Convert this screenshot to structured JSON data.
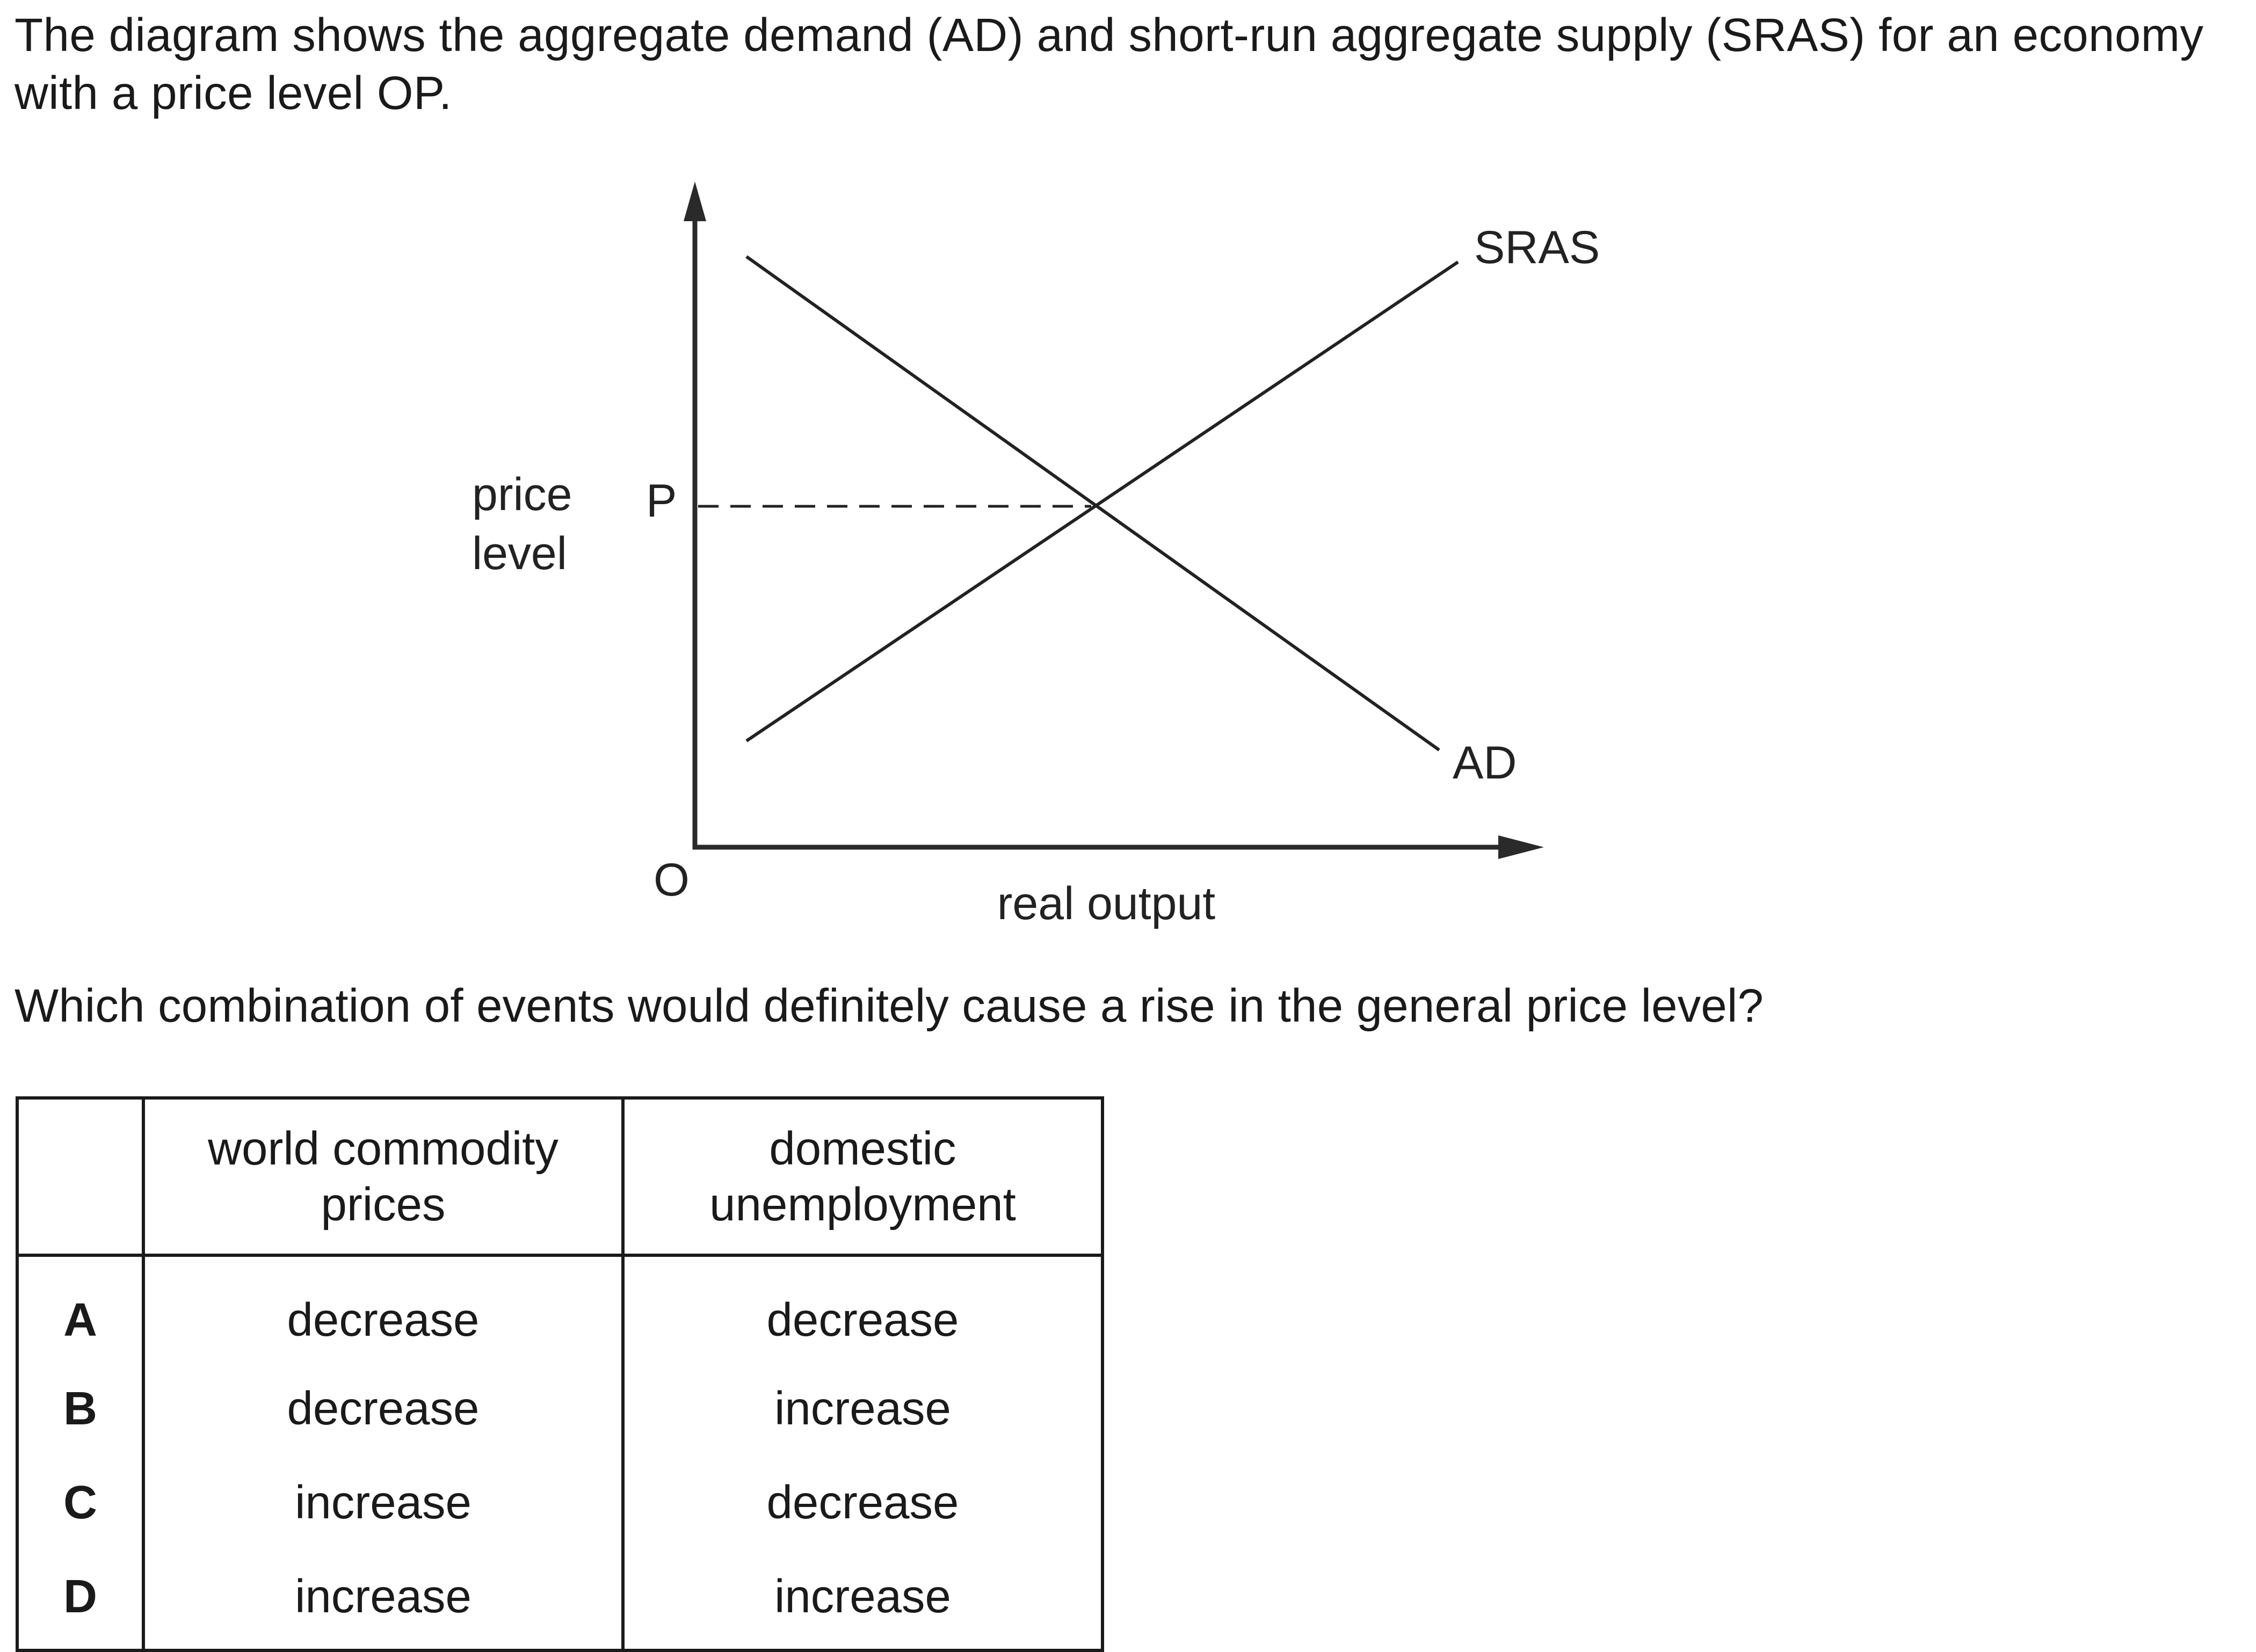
{
  "intro_text": "The diagram shows the aggregate demand (AD) and short-run aggregate supply (SRAS) for an economy with a price level OP.",
  "diagram": {
    "y_axis_label_line1": "price",
    "y_axis_label_line2": "level",
    "x_axis_label": "real output",
    "origin_label": "O",
    "price_label": "P",
    "curve_labels": {
      "sras": "SRAS",
      "ad": "AD"
    }
  },
  "question_text": "Which combination of events would definitely cause a rise in the general price level?",
  "table": {
    "headers": [
      "",
      "world commodity prices",
      "domestic unemployment"
    ],
    "rows": [
      {
        "key": "A",
        "commodity": "decrease",
        "unemployment": "decrease"
      },
      {
        "key": "B",
        "commodity": "decrease",
        "unemployment": "increase"
      },
      {
        "key": "C",
        "commodity": "increase",
        "unemployment": "decrease"
      },
      {
        "key": "D",
        "commodity": "increase",
        "unemployment": "increase"
      }
    ]
  }
}
